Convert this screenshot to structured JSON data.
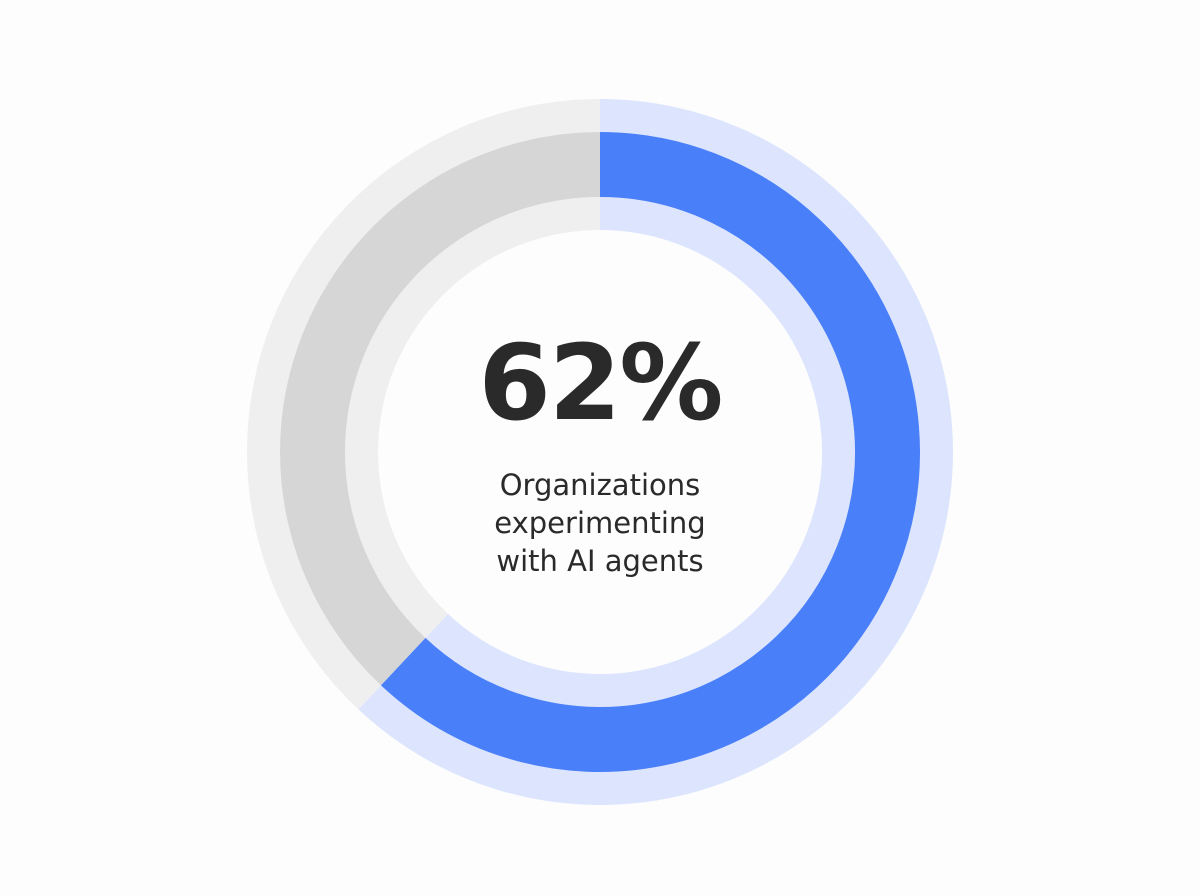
{
  "chart_data": {
    "type": "donut",
    "values": [
      62,
      38
    ],
    "value_labels": [
      "62%",
      null
    ],
    "colors": [
      "#4a7ffa",
      "#d6d6d6"
    ],
    "halo_colors": [
      "#dce5fd",
      "#efefef"
    ],
    "label": "Organizations experimenting with AI agents"
  }
}
